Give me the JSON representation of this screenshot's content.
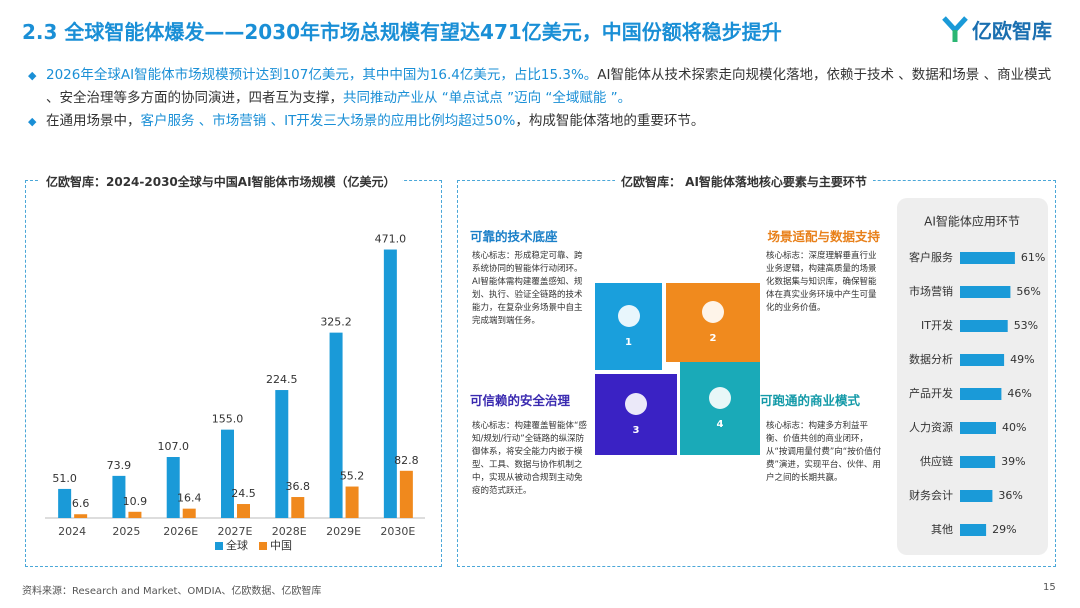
{
  "header": {
    "title": "2.3 全球智能体爆发——2030年市场总规模有望达471亿美元，中国份额将稳步提升",
    "logo": "亿欧智库"
  },
  "bullets": [
    [
      {
        "text": "2026年全球AI智能体市场规模预计达到107亿美元，其中中国为16.4亿美元，占比15.3%。",
        "accent": true
      },
      {
        "text": "AI智能体从技术探索走向规模化落地，依赖于技术 、数据和场景 、商业模式 、安全治理等多方面的协同演进，四者互为支撑，",
        "accent": false
      },
      {
        "text": "共同推动产业从 “单点试点 ”迈向 “全域赋能 ”。",
        "accent": true
      }
    ],
    [
      {
        "text": "在通用场景中，",
        "accent": false
      },
      {
        "text": "客户服务 、市场营销 、IT开发三大场景的应用比例均超过50%",
        "accent": true
      },
      {
        "text": "，构成智能体落地的重要环节。",
        "accent": false
      }
    ]
  ],
  "chart_data": [
    {
      "type": "bar",
      "title": "亿欧智库：2024-2030全球与中国AI智能体市场规模（亿美元）",
      "categories": [
        "2024",
        "2025",
        "2026E",
        "2027E",
        "2028E",
        "2029E",
        "2030E"
      ],
      "series": [
        {
          "name": "全球",
          "color": "#1a9ad8",
          "values": [
            51.0,
            73.9,
            107.0,
            155.0,
            224.5,
            325.2,
            471.0
          ],
          "value_labels": [
            "51.0",
            "73.9",
            "107.0",
            "155.0",
            "224.5",
            "325.2",
            "471.0"
          ]
        },
        {
          "name": "中国",
          "color": "#f0891d",
          "values": [
            6.6,
            10.9,
            16.4,
            24.5,
            36.8,
            55.2,
            82.8
          ],
          "value_labels": [
            "6.6",
            "10.9",
            "16.4",
            "24.5",
            "36.8",
            "55.2",
            "82.8"
          ]
        }
      ],
      "ylim": [
        0,
        500
      ],
      "legend": "bottom"
    },
    {
      "type": "hbar",
      "title": "AI智能体应用环节",
      "categories": [
        "客户服务",
        "市场营销",
        "IT开发",
        "数据分析",
        "产品开发",
        "人力资源",
        "供应链",
        "财务会计",
        "其他"
      ],
      "values": [
        61,
        56,
        53,
        49,
        46,
        40,
        39,
        36,
        29
      ],
      "value_labels": [
        "61%",
        "56%",
        "53%",
        "49%",
        "46%",
        "40%",
        "39%",
        "36%",
        "29%"
      ],
      "color": "#1a9ad8",
      "xlim": [
        0,
        100
      ]
    }
  ],
  "diagram": {
    "title": "亿欧智库： AI智能体落地核心要素与主要环节",
    "quadrants": [
      {
        "number": "1",
        "heading": "可靠的技术底座",
        "text": "核心标志：形成稳定可靠、跨系统协同的智能体行动闭环。AI智能体需构建覆盖感知、规划、执行、验证全链路的技术能力，在复杂业务场景中自主完成端到端任务。"
      },
      {
        "number": "2",
        "heading": "场景适配与数据支持",
        "text": "核心标志：深度理解垂直行业业务逻辑，构建高质量的场景化数据集与知识库，确保智能体在真实业务环境中产生可量化的业务价值。"
      },
      {
        "number": "3",
        "heading": "可信赖的安全治理",
        "text": "核心标志：构建覆盖智能体“感知/规划/行动”全链路的纵深防御体系，将安全能力内嵌于模型、工具、数据与协作机制之中，实现从被动合规到主动免疫的范式跃迁。"
      },
      {
        "number": "4",
        "heading": "可跑通的商业模式",
        "text": "核心标志：构建多方利益平衡、价值共创的商业闭环，从“按调用量付费”向“按价值付费”演进，实现平台、伙伴、用户之间的长期共赢。"
      }
    ]
  },
  "source": "资料来源：Research and Market、OMDIA、亿欧数据、亿欧智库",
  "page": "15"
}
